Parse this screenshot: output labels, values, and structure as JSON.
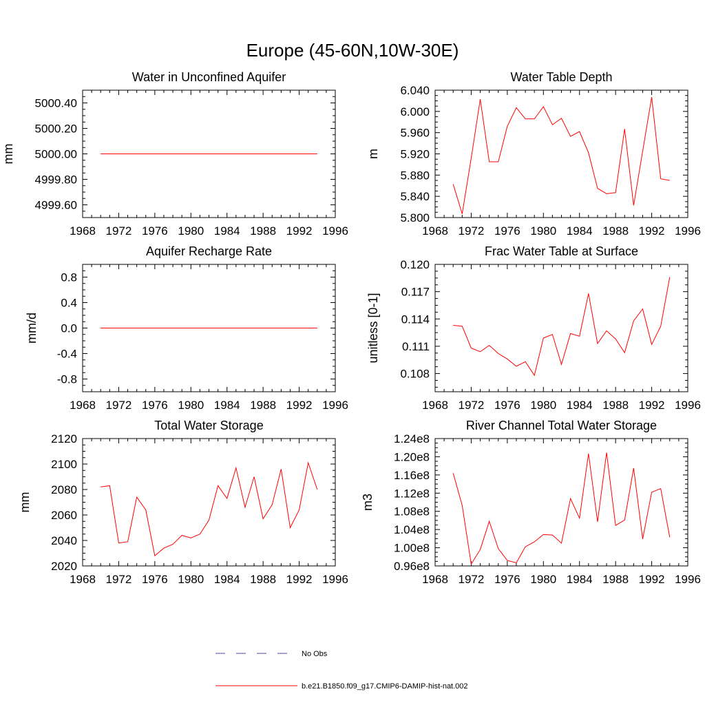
{
  "figure": {
    "title": "Europe (45-60N,10W-30E)"
  },
  "legend": {
    "entries": [
      {
        "label": "No Obs",
        "style": "dashed",
        "color": "#4a4aa0"
      },
      {
        "label": "b.e21.B1850.f09_g17.CMIP6-DAMIP-hist-nat.002",
        "style": "solid",
        "color": "#ff0000"
      }
    ]
  },
  "chart_data": [
    {
      "type": "line",
      "title": "Water in Unconfined Aquifer",
      "ylabel": "mm",
      "xlim": [
        1968,
        1996
      ],
      "xticks": [
        1968,
        1972,
        1976,
        1980,
        1984,
        1988,
        1992,
        1996
      ],
      "xtick_labels": [
        "1968",
        "1972",
        "1976",
        "1980",
        "1984",
        "1988",
        "1992",
        "1996"
      ],
      "ylim": [
        4999.5,
        5000.5
      ],
      "yticks": [
        4999.6,
        4999.8,
        5000.0,
        5000.2,
        5000.4
      ],
      "ytick_labels": [
        "4999.60",
        "4999.80",
        "5000.00",
        "5000.20",
        "5000.40"
      ],
      "series": [
        {
          "color": "#ff0000",
          "x": [
            1970,
            1971,
            1972,
            1973,
            1974,
            1975,
            1976,
            1977,
            1978,
            1979,
            1980,
            1981,
            1982,
            1983,
            1984,
            1985,
            1986,
            1987,
            1988,
            1989,
            1990,
            1991,
            1992,
            1993,
            1994
          ],
          "y": [
            5000,
            5000,
            5000,
            5000,
            5000,
            5000,
            5000,
            5000,
            5000,
            5000,
            5000,
            5000,
            5000,
            5000,
            5000,
            5000,
            5000,
            5000,
            5000,
            5000,
            5000,
            5000,
            5000,
            5000,
            5000
          ]
        }
      ]
    },
    {
      "type": "line",
      "title": "Water Table Depth",
      "ylabel": "m",
      "xlim": [
        1968,
        1996
      ],
      "xticks": [
        1968,
        1972,
        1976,
        1980,
        1984,
        1988,
        1992,
        1996
      ],
      "xtick_labels": [
        "1968",
        "1972",
        "1976",
        "1980",
        "1984",
        "1988",
        "1992",
        "1996"
      ],
      "ylim": [
        5.8,
        6.04
      ],
      "yticks": [
        5.8,
        5.84,
        5.88,
        5.92,
        5.96,
        6.0,
        6.04
      ],
      "ytick_labels": [
        "5.800",
        "5.840",
        "5.880",
        "5.920",
        "5.960",
        "6.000",
        "6.040"
      ],
      "series": [
        {
          "color": "#ff0000",
          "x": [
            1970,
            1971,
            1972,
            1973,
            1974,
            1975,
            1976,
            1977,
            1978,
            1979,
            1980,
            1981,
            1982,
            1983,
            1984,
            1985,
            1986,
            1987,
            1988,
            1989,
            1990,
            1991,
            1992,
            1993,
            1994
          ],
          "y": [
            5.863,
            5.807,
            5.912,
            6.023,
            5.905,
            5.905,
            5.972,
            6.007,
            5.986,
            5.986,
            6.009,
            5.975,
            5.987,
            5.953,
            5.962,
            5.922,
            5.855,
            5.845,
            5.847,
            5.967,
            5.823,
            5.925,
            6.027,
            5.873,
            5.87
          ]
        }
      ]
    },
    {
      "type": "line",
      "title": "Aquifer Recharge Rate",
      "ylabel": "mm/d",
      "xlim": [
        1968,
        1996
      ],
      "xticks": [
        1968,
        1972,
        1976,
        1980,
        1984,
        1988,
        1992,
        1996
      ],
      "xtick_labels": [
        "1968",
        "1972",
        "1976",
        "1980",
        "1984",
        "1988",
        "1992",
        "1996"
      ],
      "ylim": [
        -1.0,
        1.0
      ],
      "yticks": [
        -0.8,
        -0.4,
        0.0,
        0.4,
        0.8
      ],
      "ytick_labels": [
        "-0.8",
        "-0.4",
        "0.0",
        "0.4",
        "0.8"
      ],
      "series": [
        {
          "color": "#ff0000",
          "x": [
            1970,
            1971,
            1972,
            1973,
            1974,
            1975,
            1976,
            1977,
            1978,
            1979,
            1980,
            1981,
            1982,
            1983,
            1984,
            1985,
            1986,
            1987,
            1988,
            1989,
            1990,
            1991,
            1992,
            1993,
            1994
          ],
          "y": [
            0,
            0,
            0,
            0,
            0,
            0,
            0,
            0,
            0,
            0,
            0,
            0,
            0,
            0,
            0,
            0,
            0,
            0,
            0,
            0,
            0,
            0,
            0,
            0,
            0
          ]
        }
      ]
    },
    {
      "type": "line",
      "title": "Frac Water Table at Surface",
      "ylabel": "unitless [0-1]",
      "xlim": [
        1968,
        1996
      ],
      "xticks": [
        1968,
        1972,
        1976,
        1980,
        1984,
        1988,
        1992,
        1996
      ],
      "xtick_labels": [
        "1968",
        "1972",
        "1976",
        "1980",
        "1984",
        "1988",
        "1992",
        "1996"
      ],
      "ylim": [
        0.106,
        0.12
      ],
      "yticks": [
        0.108,
        0.111,
        0.114,
        0.117,
        0.12
      ],
      "ytick_labels": [
        "0.108",
        "0.111",
        "0.114",
        "0.117",
        "0.120"
      ],
      "series": [
        {
          "color": "#ff0000",
          "x": [
            1970,
            1971,
            1972,
            1973,
            1974,
            1975,
            1976,
            1977,
            1978,
            1979,
            1980,
            1981,
            1982,
            1983,
            1984,
            1985,
            1986,
            1987,
            1988,
            1989,
            1990,
            1991,
            1992,
            1993,
            1994
          ],
          "y": [
            0.1133,
            0.1132,
            0.1108,
            0.1104,
            0.1111,
            0.1102,
            0.1096,
            0.1088,
            0.1093,
            0.1078,
            0.1119,
            0.1123,
            0.109,
            0.1124,
            0.1121,
            0.1168,
            0.1113,
            0.1127,
            0.1118,
            0.1103,
            0.1138,
            0.1151,
            0.1112,
            0.1132,
            0.1186
          ]
        }
      ]
    },
    {
      "type": "line",
      "title": "Total Water Storage",
      "ylabel": "mm",
      "xlim": [
        1968,
        1996
      ],
      "xticks": [
        1968,
        1972,
        1976,
        1980,
        1984,
        1988,
        1992,
        1996
      ],
      "xtick_labels": [
        "1968",
        "1972",
        "1976",
        "1980",
        "1984",
        "1988",
        "1992",
        "1996"
      ],
      "ylim": [
        2020,
        2120
      ],
      "yticks": [
        2020,
        2040,
        2060,
        2080,
        2100,
        2120
      ],
      "ytick_labels": [
        "2020",
        "2040",
        "2060",
        "2080",
        "2100",
        "2120"
      ],
      "series": [
        {
          "color": "#ff0000",
          "x": [
            1970,
            1971,
            1972,
            1973,
            1974,
            1975,
            1976,
            1977,
            1978,
            1979,
            1980,
            1981,
            1982,
            1983,
            1984,
            1985,
            1986,
            1987,
            1988,
            1989,
            1990,
            1991,
            1992,
            1993,
            1994
          ],
          "y": [
            2082,
            2083,
            2038,
            2039,
            2074,
            2064,
            2028,
            2034,
            2037,
            2044,
            2042,
            2045,
            2056,
            2083,
            2073,
            2097,
            2066,
            2090,
            2057,
            2068,
            2096,
            2050,
            2064,
            2101,
            2080
          ]
        }
      ]
    },
    {
      "type": "line",
      "title": "River Channel Total Water Storage",
      "ylabel": "m3",
      "xlim": [
        1968,
        1996
      ],
      "xticks": [
        1968,
        1972,
        1976,
        1980,
        1984,
        1988,
        1992,
        1996
      ],
      "xtick_labels": [
        "1968",
        "1972",
        "1976",
        "1980",
        "1984",
        "1988",
        "1992",
        "1996"
      ],
      "ylim": [
        96000000,
        124000000
      ],
      "yticks": [
        96000000,
        100000000,
        104000000,
        108000000,
        112000000,
        116000000,
        120000000,
        124000000
      ],
      "ytick_labels": [
        "0.96e8",
        "1.00e8",
        "1.04e8",
        "1.08e8",
        "1.12e8",
        "1.16e8",
        "1.20e8",
        "1.24e8"
      ],
      "series": [
        {
          "color": "#ff0000",
          "x": [
            1970,
            1971,
            1972,
            1973,
            1974,
            1975,
            1976,
            1977,
            1978,
            1979,
            1980,
            1981,
            1982,
            1983,
            1984,
            1985,
            1986,
            1987,
            1988,
            1989,
            1990,
            1991,
            1992,
            1993,
            1994
          ],
          "y": [
            116400000,
            109300000,
            96400000,
            99600000,
            105800000,
            99800000,
            97200000,
            96700000,
            100200000,
            101300000,
            102900000,
            102800000,
            101000000,
            110800000,
            106500000,
            120700000,
            105700000,
            120900000,
            104900000,
            106100000,
            117500000,
            101900000,
            112200000,
            113000000,
            102300000
          ]
        }
      ]
    }
  ]
}
